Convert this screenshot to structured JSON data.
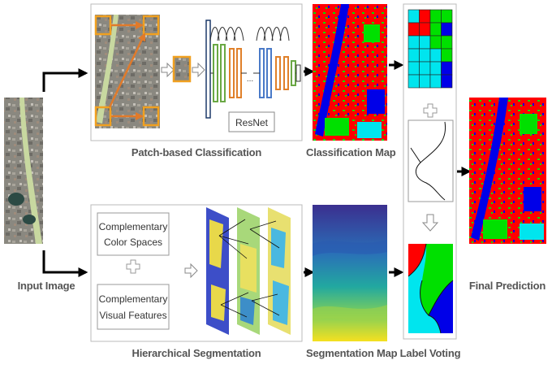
{
  "labels": {
    "input_image": "Input Image",
    "patch_classification": "Patch-based Classification",
    "classification_map": "Classification Map",
    "hierarchical_segmentation": "Hierarchical Segmentation",
    "segmentation_map": "Segmentation Map",
    "label_voting": "Label Voting",
    "final_prediction": "Final Prediction",
    "resnet": "ResNet",
    "ellipsis": "...",
    "color_spaces_line1": "Complementary",
    "color_spaces_line2": "Color Spaces",
    "visual_features_line1": "Complementary",
    "visual_features_line2": "Visual Features",
    "plus": "+"
  },
  "colors": {
    "red": "#ff0000",
    "green": "#00e000",
    "blue": "#0000e8",
    "cyan": "#00e5ee",
    "patch_orange": "#f0a020",
    "arrow_orange": "#e07a2a",
    "label_gray": "#555555",
    "river": "#c8d8a0"
  },
  "voting_grid": [
    [
      "cyan",
      "red",
      "green",
      "green"
    ],
    [
      "red",
      "red",
      "green",
      "blue"
    ],
    [
      "cyan",
      "cyan",
      "green",
      "green"
    ],
    [
      "cyan",
      "cyan",
      "cyan",
      "green"
    ],
    [
      "cyan",
      "cyan",
      "cyan",
      "blue"
    ],
    [
      "cyan",
      "cyan",
      "cyan",
      "blue"
    ]
  ]
}
